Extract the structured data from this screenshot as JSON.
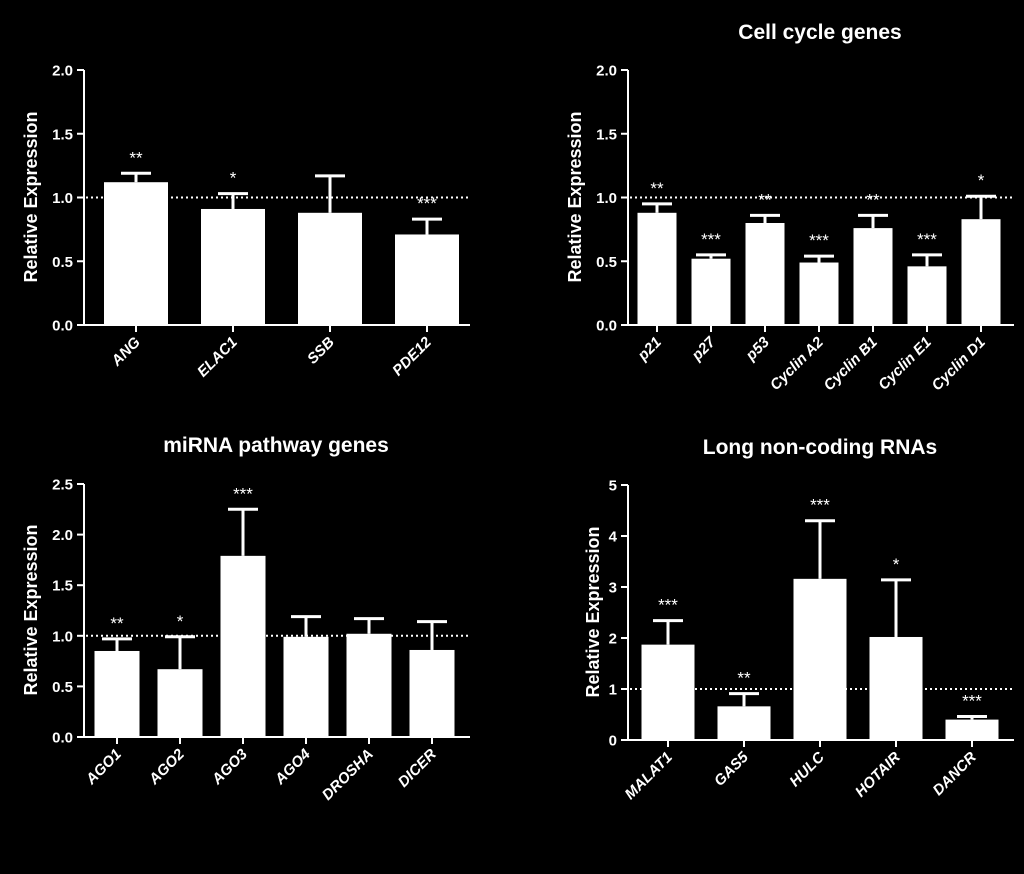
{
  "chart_data": [
    {
      "type": "bar",
      "title": "",
      "xlabel": "",
      "ylabel": "Relative Expression",
      "ylim": [
        0,
        2.0
      ],
      "yticks": [
        "0.0",
        "0.5",
        "1.0",
        "1.5",
        "2.0"
      ],
      "reference_line": 1.0,
      "grid": false,
      "categories": [
        "ANG",
        "ELAC1",
        "SSB",
        "PDE12"
      ],
      "values": [
        1.12,
        0.91,
        0.88,
        0.71
      ],
      "errors": [
        0.07,
        0.12,
        0.29,
        0.12
      ],
      "significance": [
        "**",
        "*",
        "",
        "***"
      ]
    },
    {
      "type": "bar",
      "title": "Cell cycle genes",
      "xlabel": "",
      "ylabel": "Relative Expression",
      "ylim": [
        0,
        2.0
      ],
      "yticks": [
        "0.0",
        "0.5",
        "1.0",
        "1.5",
        "2.0"
      ],
      "reference_line": 1.0,
      "grid": false,
      "categories": [
        "p21",
        "p27",
        "p53",
        "Cyclin A2",
        "Cyclin B1",
        "Cyclin E1",
        "Cyclin D1"
      ],
      "values": [
        0.88,
        0.52,
        0.8,
        0.49,
        0.76,
        0.46,
        0.83
      ],
      "errors": [
        0.07,
        0.03,
        0.06,
        0.05,
        0.1,
        0.09,
        0.18
      ],
      "significance": [
        "**",
        "***",
        "**",
        "***",
        "**",
        "***",
        "*"
      ]
    },
    {
      "type": "bar",
      "title": "miRNA pathway genes",
      "xlabel": "",
      "ylabel": "Relative Expression",
      "ylim": [
        0,
        2.5
      ],
      "yticks": [
        "0.0",
        "0.5",
        "1.0",
        "1.5",
        "2.0",
        "2.5"
      ],
      "reference_line": 1.0,
      "grid": false,
      "categories": [
        "AGO1",
        "AGO2",
        "AGO3",
        "AGO4",
        "DROSHA",
        "DICER"
      ],
      "values": [
        0.85,
        0.67,
        1.79,
        0.99,
        1.02,
        0.86
      ],
      "errors": [
        0.12,
        0.32,
        0.46,
        0.2,
        0.15,
        0.28
      ],
      "significance": [
        "**",
        "*",
        "***",
        "",
        "",
        ""
      ]
    },
    {
      "type": "bar",
      "title": "Long non-coding RNAs",
      "xlabel": "",
      "ylabel": "Relative Expression",
      "ylim": [
        0,
        5
      ],
      "yticks": [
        "0",
        "1",
        "2",
        "3",
        "4",
        "5"
      ],
      "reference_line": 1.0,
      "grid": false,
      "categories": [
        "MALAT1",
        "GAS5",
        "HULC",
        "HOTAIR",
        "DANCR"
      ],
      "values": [
        1.87,
        0.66,
        3.16,
        2.02,
        0.4
      ],
      "errors": [
        0.47,
        0.25,
        1.14,
        1.12,
        0.06
      ],
      "significance": [
        "***",
        "**",
        "***",
        "*",
        "***"
      ]
    }
  ]
}
